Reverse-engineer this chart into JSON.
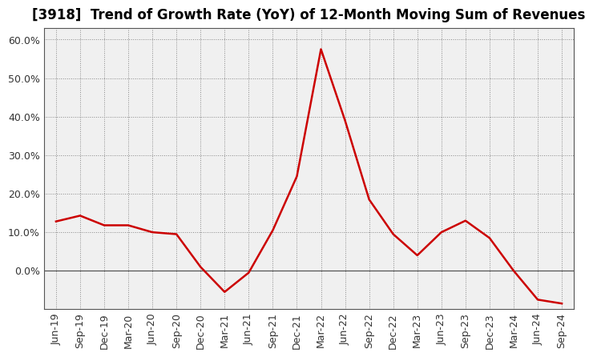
{
  "title": "[3918]  Trend of Growth Rate (YoY) of 12-Month Moving Sum of Revenues",
  "line_color": "#cc0000",
  "background_color": "#ffffff",
  "plot_bg_color": "#f0f0f0",
  "grid_color": "#888888",
  "border_color": "#555555",
  "x_labels": [
    "Jun-19",
    "Sep-19",
    "Dec-19",
    "Mar-20",
    "Jun-20",
    "Sep-20",
    "Dec-20",
    "Mar-21",
    "Jun-21",
    "Sep-21",
    "Dec-21",
    "Mar-22",
    "Jun-22",
    "Sep-22",
    "Dec-22",
    "Mar-23",
    "Jun-23",
    "Sep-23",
    "Dec-23",
    "Mar-24",
    "Jun-24",
    "Sep-24"
  ],
  "values": [
    0.128,
    0.143,
    0.118,
    0.118,
    0.1,
    0.095,
    0.01,
    -0.055,
    -0.005,
    0.105,
    0.245,
    0.575,
    0.39,
    0.185,
    0.095,
    0.04,
    0.1,
    0.13,
    0.085,
    0.0,
    -0.075,
    -0.085
  ],
  "ylim": [
    -0.1,
    0.63
  ],
  "yticks": [
    0.0,
    0.1,
    0.2,
    0.3,
    0.4,
    0.5,
    0.6
  ],
  "title_fontsize": 12,
  "tick_fontsize": 9,
  "linewidth": 1.8
}
